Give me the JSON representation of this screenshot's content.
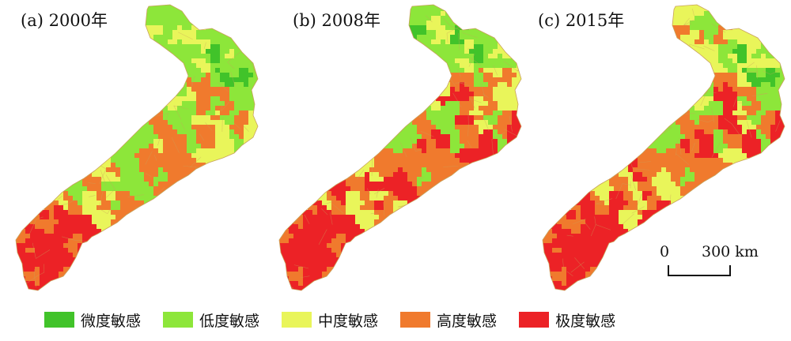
{
  "panels": [
    {
      "id": "a",
      "title": "(a) 2000年"
    },
    {
      "id": "b",
      "title": "(b) 2008年"
    },
    {
      "id": "c",
      "title": "(c) 2015年"
    }
  ],
  "scalebar": {
    "zero": "0",
    "distance": "300 km"
  },
  "legend": [
    {
      "label": "微度敏感",
      "color": "#41c32a"
    },
    {
      "label": "低度敏感",
      "color": "#8de63a"
    },
    {
      "label": "中度敏感",
      "color": "#e9f55a"
    },
    {
      "label": "高度敏感",
      "color": "#f07a2d"
    },
    {
      "label": "极度敏感",
      "color": "#ec2226"
    }
  ],
  "colors": {
    "slight": "#41c32a",
    "low": "#8de63a",
    "medium": "#e9f55a",
    "high": "#f07a2d",
    "extreme": "#ec2226",
    "border": "#c9a25c"
  }
}
